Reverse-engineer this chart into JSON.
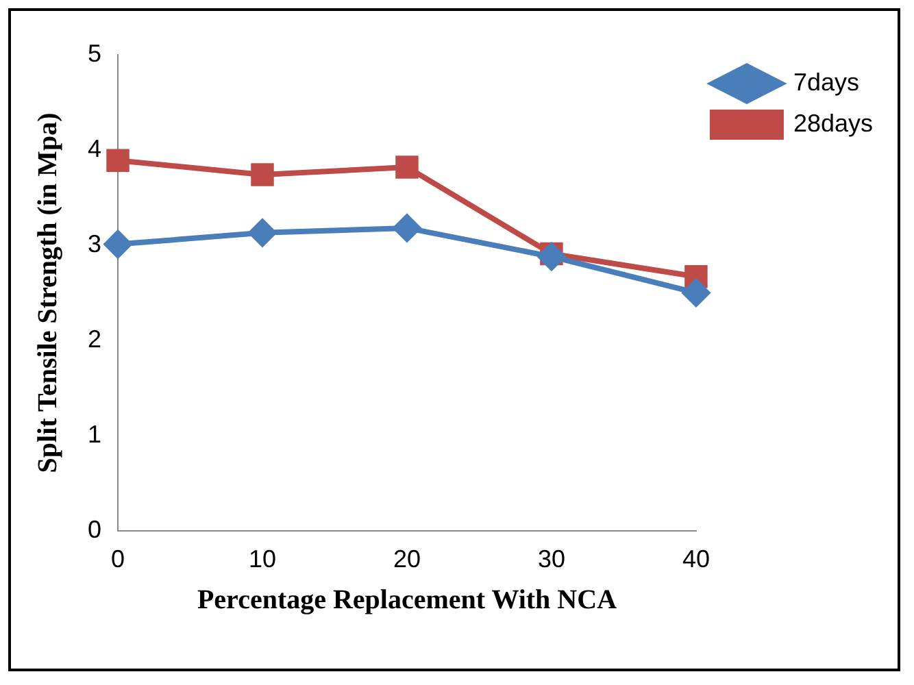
{
  "chart_data": {
    "type": "line",
    "xlabel": "Percentage Replacement With NCA",
    "ylabel": "Split Tensile Strength (in Mpa)",
    "categories": [
      "0",
      "10",
      "20",
      "30",
      "40"
    ],
    "ylim": [
      0,
      5
    ],
    "yticks": [
      0,
      1,
      2,
      3,
      4,
      5
    ],
    "grid": false,
    "legend": "right",
    "series": [
      {
        "name": "7days",
        "color": "#4a7ebb",
        "marker": "diamond",
        "values": [
          3.01,
          3.13,
          3.18,
          2.88,
          2.5
        ]
      },
      {
        "name": "28days",
        "color": "#be4b48",
        "marker": "square",
        "values": [
          3.89,
          3.74,
          3.82,
          2.91,
          2.67
        ]
      }
    ]
  }
}
